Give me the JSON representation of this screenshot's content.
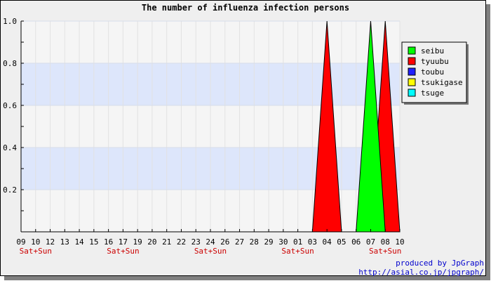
{
  "chart_data": {
    "type": "area",
    "title": "The number of influenza infection persons",
    "xlabel": "",
    "ylabel": "",
    "categories": [
      "09",
      "10",
      "12",
      "13",
      "14",
      "15",
      "16",
      "17",
      "19",
      "20",
      "21",
      "22",
      "23",
      "24",
      "26",
      "27",
      "28",
      "29",
      "30",
      "01",
      "03",
      "04",
      "05",
      "06",
      "07",
      "08",
      "10"
    ],
    "weekend_marks": [
      {
        "index": 1,
        "label": "Sat+Sun"
      },
      {
        "index": 7,
        "label": "Sat+Sun"
      },
      {
        "index": 13,
        "label": "Sat+Sun"
      },
      {
        "index": 19,
        "label": "Sat+Sun"
      },
      {
        "index": 25,
        "label": "Sat+Sun"
      }
    ],
    "ylim": [
      0,
      1.0
    ],
    "yticks": [
      0.2,
      0.4,
      0.6,
      0.8,
      1.0
    ],
    "ytick_labels": [
      "0.2",
      "0.4",
      "0.6",
      "0.8",
      "1.0"
    ],
    "grid": true,
    "legend_position": "right",
    "series": [
      {
        "name": "seibu",
        "color": "#00ff00",
        "values": [
          0,
          0,
          0,
          0,
          0,
          0,
          0,
          0,
          0,
          0,
          0,
          0,
          0,
          0,
          0,
          0,
          0,
          0,
          0,
          0,
          0,
          0,
          0,
          0,
          1,
          0,
          0
        ]
      },
      {
        "name": "tyuubu",
        "color": "#ff0000",
        "values": [
          0,
          0,
          0,
          0,
          0,
          0,
          0,
          0,
          0,
          0,
          0,
          0,
          0,
          0,
          0,
          0,
          0,
          0,
          0,
          0,
          0,
          1,
          0,
          0,
          0,
          1,
          0
        ]
      },
      {
        "name": "toubu",
        "color": "#2020ff",
        "values": [
          0,
          0,
          0,
          0,
          0,
          0,
          0,
          0,
          0,
          0,
          0,
          0,
          0,
          0,
          0,
          0,
          0,
          0,
          0,
          0,
          0,
          0,
          0,
          0,
          0,
          0,
          0
        ]
      },
      {
        "name": "tsukigase",
        "color": "#ffff00",
        "values": [
          0,
          0,
          0,
          0,
          0,
          0,
          0,
          0,
          0,
          0,
          0,
          0,
          0,
          0,
          0,
          0,
          0,
          0,
          0,
          0,
          0,
          0,
          0,
          0,
          0,
          0,
          0
        ]
      },
      {
        "name": "tsuge",
        "color": "#00ffff",
        "values": [
          0,
          0,
          0,
          0,
          0,
          0,
          0,
          0,
          0,
          0,
          0,
          0,
          0,
          0,
          0,
          0,
          0,
          0,
          0,
          0,
          0,
          0,
          0,
          0,
          0,
          0,
          0
        ]
      }
    ]
  },
  "credits": {
    "line1": "produced by JpGraph",
    "line2": "http://asial.co.jp/jpgraph/"
  }
}
